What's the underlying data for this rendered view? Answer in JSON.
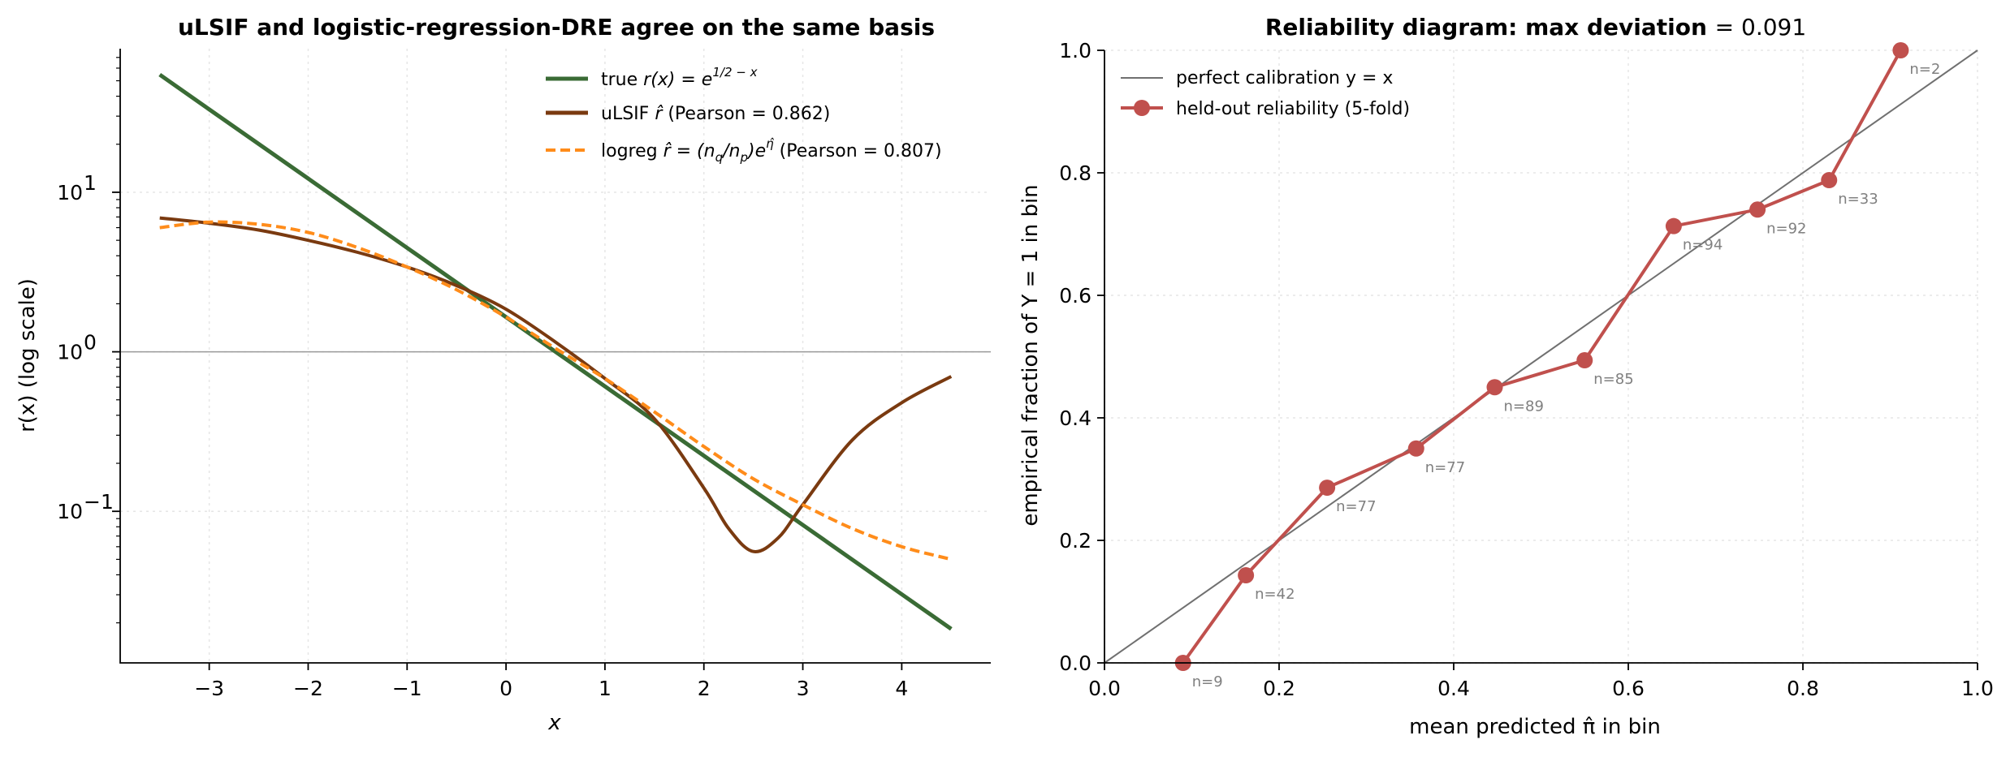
{
  "chart_data": [
    {
      "type": "line",
      "title": "uLSIF and logistic-regression-DRE agree on the same basis",
      "xlabel": "x",
      "ylabel": "r(x)  (log scale)",
      "xlim": [
        -3.9,
        4.9
      ],
      "ylim_log10": [
        -1.95,
        1.9
      ],
      "yscale": "log",
      "x_ticks": [
        "−3",
        "−2",
        "−1",
        "0",
        "1",
        "2",
        "3",
        "4"
      ],
      "x_tick_values": [
        -3,
        -2,
        -1,
        0,
        1,
        2,
        3,
        4
      ],
      "y_ticks": [
        "10",
        "10",
        "10"
      ],
      "y_tick_exponents": [
        "−1",
        "0",
        "1"
      ],
      "y_tick_log_values": [
        -1,
        0,
        1
      ],
      "reference_line_y": 1,
      "grid": true,
      "legend_position": "upper-right",
      "series": [
        {
          "name": "true r(x) = e^(1/2 − x)",
          "legend_prefix": "true ",
          "legend_math": "r(x) = e",
          "legend_sup": "1/2 − x",
          "color": "#3a6b35",
          "style": "solid",
          "x": [
            -3.5,
            -3,
            -2,
            -1,
            0,
            1,
            2,
            3,
            4,
            4.5
          ],
          "y": [
            54.6,
            33.1,
            12.18,
            4.48,
            1.65,
            0.607,
            0.223,
            0.0821,
            0.0302,
            0.0183
          ]
        },
        {
          "name": "uLSIF r̂  (Pearson = 0.862)",
          "legend_prefix": "uLSIF ",
          "legend_math": "r̂",
          "legend_suffix": "  (Pearson  = 0.862)",
          "color": "#7a3a10",
          "style": "solid",
          "x": [
            -3.5,
            -3,
            -2.5,
            -2,
            -1.5,
            -1,
            -0.5,
            0,
            0.5,
            1,
            1.5,
            2,
            2.25,
            2.5,
            2.75,
            3,
            3.5,
            4,
            4.5
          ],
          "y": [
            6.9,
            6.4,
            5.8,
            5.0,
            4.2,
            3.4,
            2.6,
            1.85,
            1.15,
            0.68,
            0.38,
            0.14,
            0.078,
            0.056,
            0.068,
            0.11,
            0.28,
            0.48,
            0.7
          ]
        },
        {
          "name": "logreg r̂ = (n_q/n_p)e^η̂  (Pearson = 0.807)",
          "legend_prefix": "logreg ",
          "legend_math": "r̂ = (n",
          "legend_sub1": "q",
          "legend_mid": "/n",
          "legend_sub2": "p",
          "legend_end": ")e",
          "legend_sup": "η̂",
          "legend_suffix": "  (Pearson  = 0.807)",
          "color": "#ff8c1a",
          "style": "dashed",
          "x": [
            -3.5,
            -3,
            -2.5,
            -2,
            -1.5,
            -1,
            -0.5,
            0,
            0.5,
            1,
            1.5,
            2,
            2.5,
            3,
            3.5,
            4,
            4.5
          ],
          "y": [
            6.0,
            6.5,
            6.3,
            5.6,
            4.5,
            3.4,
            2.45,
            1.65,
            1.05,
            0.68,
            0.42,
            0.255,
            0.16,
            0.11,
            0.078,
            0.06,
            0.05
          ]
        }
      ]
    },
    {
      "type": "line",
      "title": "Reliability diagram: max deviation ",
      "title_value": " = 0.091",
      "xlabel": "mean predicted π̂ in bin",
      "ylabel": "empirical fraction of Y = 1 in bin",
      "xlim": [
        0,
        1
      ],
      "ylim": [
        0,
        1
      ],
      "x_ticks": [
        "0.0",
        "0.2",
        "0.4",
        "0.6",
        "0.8",
        "1.0"
      ],
      "y_ticks": [
        "0.0",
        "0.2",
        "0.4",
        "0.6",
        "0.8",
        "1.0"
      ],
      "grid": true,
      "legend_position": "upper-left",
      "series": [
        {
          "name": "perfect calibration y = x",
          "color": "#707070",
          "style": "solid",
          "x": [
            0,
            1
          ],
          "y": [
            0,
            1
          ]
        },
        {
          "name": "held-out reliability (5-fold)",
          "color": "#c0504d",
          "style": "solid-markers",
          "x": [
            0.09,
            0.162,
            0.255,
            0.357,
            0.447,
            0.55,
            0.652,
            0.748,
            0.83,
            0.912
          ],
          "y": [
            0.0,
            0.143,
            0.286,
            0.35,
            0.45,
            0.494,
            0.713,
            0.74,
            0.788,
            1.0
          ],
          "n_labels": [
            "n=9",
            "n=42",
            "n=77",
            "n=77",
            "n=89",
            "n=85",
            "n=94",
            "n=92",
            "n=33",
            "n=2"
          ]
        }
      ]
    }
  ]
}
